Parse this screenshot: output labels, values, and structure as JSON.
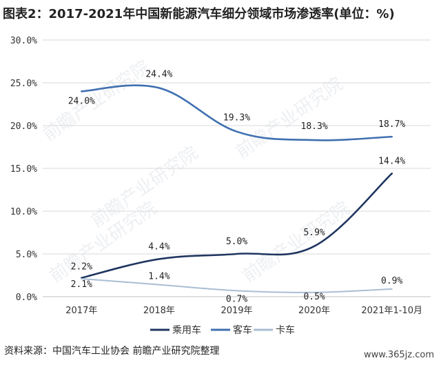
{
  "title": "图表2：2017-2021年中国新能源汽车细分领域市场渗透率(单位：%)",
  "source": "资料来源：中国汽车工业协会 前瞻产业研究院整理",
  "watermark": "前瞻产业研究院",
  "site": "www.365jz.com",
  "chart_data": {
    "type": "line",
    "categories": [
      "2017年",
      "2018年",
      "2019年",
      "2020年",
      "2021年1-10月"
    ],
    "yticks": [
      "0.0%",
      "5.0%",
      "10.0%",
      "15.0%",
      "20.0%",
      "25.0%",
      "30.0%"
    ],
    "ylim": [
      0,
      30
    ],
    "grid": true,
    "legend_position": "bottom",
    "series": [
      {
        "name": "乘用车",
        "color": "#1f3560",
        "values": [
          2.2,
          4.4,
          5.0,
          5.9,
          14.4
        ],
        "labels": [
          "2.2%",
          "4.4%",
          "5.0%",
          "5.9%",
          "14.4%"
        ]
      },
      {
        "name": "客车",
        "color": "#3f6fb0",
        "values": [
          24.0,
          24.4,
          19.3,
          18.3,
          18.7
        ],
        "labels": [
          "24.0%",
          "24.4%",
          "19.3%",
          "18.3%",
          "18.7%"
        ]
      },
      {
        "name": "卡车",
        "color": "#a9bdd3",
        "values": [
          2.1,
          1.4,
          0.7,
          0.5,
          0.9
        ],
        "labels": [
          "2.1%",
          "1.4%",
          "0.7%",
          "0.5%",
          "0.9%"
        ]
      }
    ]
  }
}
